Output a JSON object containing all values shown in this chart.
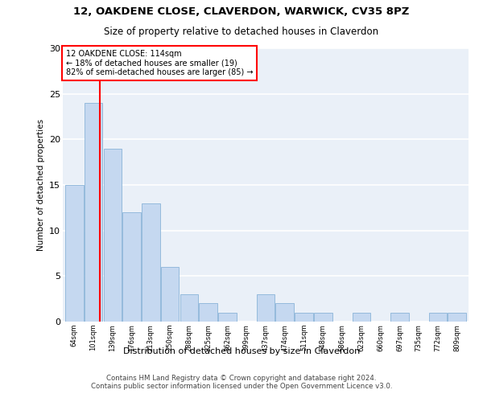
{
  "title_line1": "12, OAKDENE CLOSE, CLAVERDON, WARWICK, CV35 8PZ",
  "title_line2": "Size of property relative to detached houses in Claverdon",
  "xlabel": "Distribution of detached houses by size in Claverdon",
  "ylabel": "Number of detached properties",
  "categories": [
    "64sqm",
    "101sqm",
    "139sqm",
    "176sqm",
    "213sqm",
    "250sqm",
    "288sqm",
    "325sqm",
    "362sqm",
    "399sqm",
    "437sqm",
    "474sqm",
    "511sqm",
    "548sqm",
    "586sqm",
    "623sqm",
    "660sqm",
    "697sqm",
    "735sqm",
    "772sqm",
    "809sqm"
  ],
  "values": [
    15,
    24,
    19,
    12,
    13,
    6,
    3,
    2,
    1,
    0,
    3,
    2,
    1,
    1,
    0,
    1,
    0,
    1,
    0,
    1,
    1
  ],
  "bar_color": "#c5d8f0",
  "bar_edge_color": "#8ab4d8",
  "annotation_box_text": "12 OAKDENE CLOSE: 114sqm\n← 18% of detached houses are smaller (19)\n82% of semi-detached houses are larger (85) →",
  "annotation_box_color": "white",
  "annotation_box_edge_color": "red",
  "vline_color": "red",
  "ylim": [
    0,
    30
  ],
  "yticks": [
    0,
    5,
    10,
    15,
    20,
    25,
    30
  ],
  "footer_text": "Contains HM Land Registry data © Crown copyright and database right 2024.\nContains public sector information licensed under the Open Government Licence v3.0.",
  "background_color": "#eaf0f8",
  "grid_color": "white",
  "bin_width": 37,
  "vline_x_index": 1.35
}
